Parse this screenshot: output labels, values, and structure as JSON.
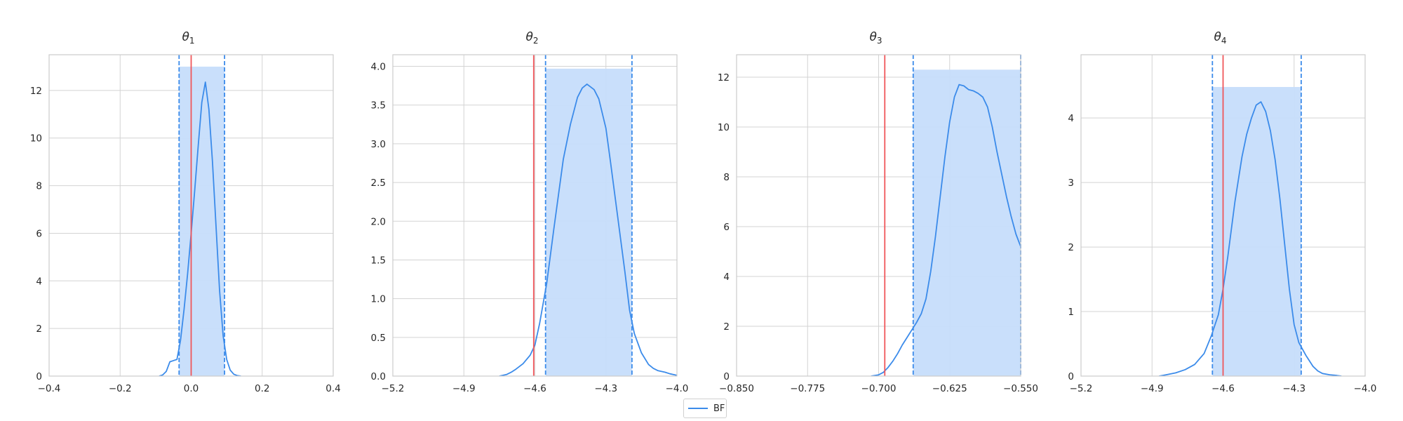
{
  "chart_data": [
    {
      "type": "line",
      "title": "θ",
      "title_sub": "1",
      "xlim": [
        -0.4,
        0.4
      ],
      "ylim": [
        0,
        13.5
      ],
      "xticks": [
        -0.4,
        -0.2,
        0,
        0.2,
        0.4
      ],
      "xtick_labels": [
        "−0.4",
        "−0.2",
        "0.0",
        "0.2",
        "0.4"
      ],
      "yticks": [
        0,
        2,
        4,
        6,
        8,
        10,
        12
      ],
      "ytick_labels": [
        "0",
        "2",
        "4",
        "6",
        "8",
        "10",
        "12"
      ],
      "true_value": 0.0,
      "interval": [
        -0.034,
        0.094
      ],
      "interval_height": 13.0,
      "series": [
        {
          "name": "BF",
          "x": [
            -0.09,
            -0.08,
            -0.07,
            -0.06,
            -0.05,
            -0.04,
            -0.03,
            -0.02,
            -0.01,
            0.0,
            0.01,
            0.02,
            0.03,
            0.04,
            0.05,
            0.06,
            0.07,
            0.08,
            0.09,
            0.1,
            0.11,
            0.12,
            0.13,
            0.14
          ],
          "y": [
            0,
            0.05,
            0.2,
            0.6,
            0.65,
            0.7,
            1.5,
            2.8,
            4.3,
            6.0,
            7.8,
            9.7,
            11.5,
            12.35,
            11.2,
            9.0,
            6.3,
            3.6,
            1.7,
            0.7,
            0.25,
            0.08,
            0.02,
            0
          ]
        }
      ]
    },
    {
      "type": "line",
      "title": "θ",
      "title_sub": "2",
      "xlim": [
        -5.2,
        -4.0
      ],
      "ylim": [
        0,
        4.15
      ],
      "xticks": [
        -5.2,
        -4.9,
        -4.6,
        -4.3,
        -4.0
      ],
      "xtick_labels": [
        "−5.2",
        "−4.9",
        "−4.6",
        "−4.3",
        "−4.0"
      ],
      "yticks": [
        0,
        0.5,
        1.0,
        1.5,
        2.0,
        2.5,
        3.0,
        3.5,
        4.0
      ],
      "ytick_labels": [
        "0.0",
        "0.5",
        "1.0",
        "1.5",
        "2.0",
        "2.5",
        "3.0",
        "3.5",
        "4.0"
      ],
      "true_value": -4.605,
      "interval": [
        -4.555,
        -4.19
      ],
      "interval_height": 3.97,
      "series": [
        {
          "name": "BF",
          "x": [
            -4.75,
            -4.72,
            -4.7,
            -4.68,
            -4.65,
            -4.62,
            -4.6,
            -4.58,
            -4.55,
            -4.52,
            -4.5,
            -4.48,
            -4.45,
            -4.42,
            -4.4,
            -4.38,
            -4.35,
            -4.33,
            -4.3,
            -4.28,
            -4.25,
            -4.22,
            -4.2,
            -4.18,
            -4.15,
            -4.12,
            -4.1,
            -4.08,
            -4.05,
            -4.03,
            -4.0
          ],
          "y": [
            0,
            0.02,
            0.05,
            0.09,
            0.16,
            0.27,
            0.4,
            0.68,
            1.2,
            1.9,
            2.35,
            2.8,
            3.25,
            3.6,
            3.72,
            3.77,
            3.7,
            3.58,
            3.2,
            2.75,
            2.05,
            1.35,
            0.85,
            0.55,
            0.3,
            0.15,
            0.1,
            0.07,
            0.05,
            0.03,
            0.01
          ]
        }
      ]
    },
    {
      "type": "line",
      "title": "θ",
      "title_sub": "3",
      "xlim": [
        -0.85,
        -0.55
      ],
      "ylim": [
        0,
        12.9
      ],
      "xticks": [
        -0.85,
        -0.775,
        -0.7,
        -0.625,
        -0.55
      ],
      "xtick_labels": [
        "−0.850",
        "−0.775",
        "−0.700",
        "−0.625",
        "−0.550"
      ],
      "yticks": [
        0,
        2,
        4,
        6,
        8,
        10,
        12
      ],
      "ytick_labels": [
        "0",
        "2",
        "4",
        "6",
        "8",
        "10",
        "12"
      ],
      "true_value": -0.6935,
      "interval": [
        -0.6635,
        -0.55
      ],
      "interval_height": 12.3,
      "series": [
        {
          "name": "BF",
          "x": [
            -0.708,
            -0.7,
            -0.695,
            -0.69,
            -0.685,
            -0.68,
            -0.675,
            -0.67,
            -0.665,
            -0.66,
            -0.655,
            -0.65,
            -0.645,
            -0.64,
            -0.635,
            -0.63,
            -0.625,
            -0.62,
            -0.615,
            -0.61,
            -0.605,
            -0.6,
            -0.595,
            -0.59,
            -0.585,
            -0.58,
            -0.575,
            -0.57,
            -0.565,
            -0.56,
            -0.555,
            -0.55
          ],
          "y": [
            0,
            0.05,
            0.15,
            0.35,
            0.6,
            0.9,
            1.25,
            1.55,
            1.85,
            2.15,
            2.5,
            3.1,
            4.2,
            5.6,
            7.2,
            8.8,
            10.2,
            11.2,
            11.7,
            11.65,
            11.5,
            11.45,
            11.35,
            11.2,
            10.8,
            10.0,
            9.0,
            8.1,
            7.2,
            6.4,
            5.7,
            5.2
          ]
        }
      ]
    },
    {
      "type": "line",
      "title": "θ",
      "title_sub": "4",
      "xlim": [
        -5.2,
        -4.0
      ],
      "ylim": [
        0,
        4.98
      ],
      "xticks": [
        -5.2,
        -4.9,
        -4.6,
        -4.3,
        -4.0
      ],
      "xtick_labels": [
        "−5.2",
        "−4.9",
        "−4.6",
        "−4.3",
        "−4.0"
      ],
      "yticks": [
        0,
        1,
        2,
        3,
        4
      ],
      "ytick_labels": [
        "0",
        "1",
        "2",
        "3",
        "4"
      ],
      "true_value": -4.6,
      "interval": [
        -4.645,
        -4.27
      ],
      "interval_height": 4.48,
      "series": [
        {
          "name": "BF",
          "x": [
            -4.87,
            -4.84,
            -4.8,
            -4.76,
            -4.72,
            -4.68,
            -4.65,
            -4.62,
            -4.6,
            -4.58,
            -4.55,
            -4.52,
            -4.5,
            -4.48,
            -4.46,
            -4.44,
            -4.42,
            -4.4,
            -4.38,
            -4.36,
            -4.34,
            -4.32,
            -4.3,
            -4.28,
            -4.25,
            -4.22,
            -4.2,
            -4.18,
            -4.15,
            -4.12,
            -4.1
          ],
          "y": [
            0,
            0.02,
            0.05,
            0.1,
            0.18,
            0.35,
            0.62,
            0.95,
            1.35,
            1.85,
            2.7,
            3.4,
            3.75,
            4.0,
            4.2,
            4.25,
            4.1,
            3.8,
            3.35,
            2.75,
            2.05,
            1.35,
            0.8,
            0.52,
            0.32,
            0.15,
            0.08,
            0.04,
            0.02,
            0.01,
            0
          ]
        }
      ]
    }
  ],
  "legend": {
    "label": "BF"
  },
  "colors": {
    "kde": "#3b8bea",
    "interval_fill": "#c6ddfb",
    "interval_line": "#3b8bea",
    "true_line": "#f0565a",
    "grid": "#d3d3d3",
    "frame": "#cccccc"
  }
}
